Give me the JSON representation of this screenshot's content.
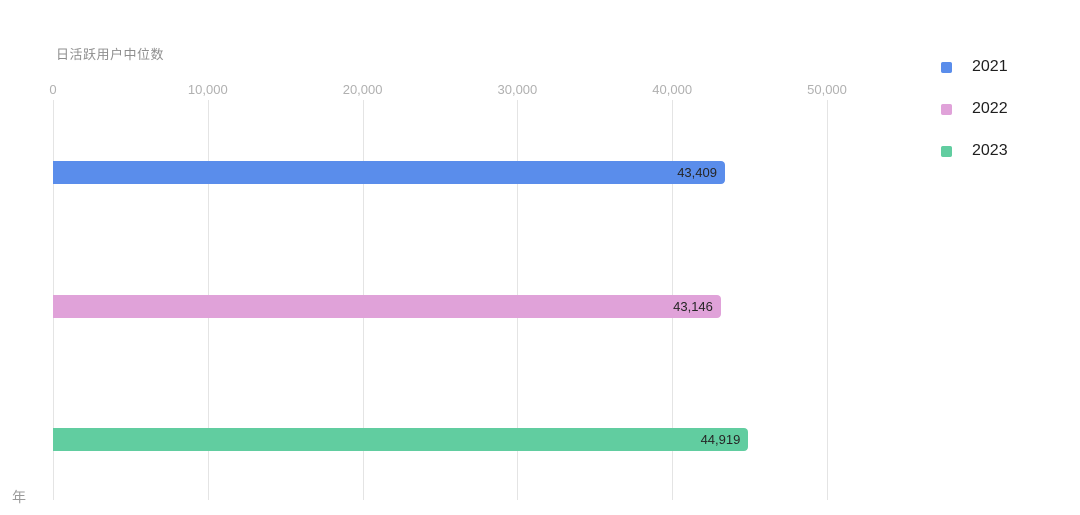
{
  "chart_data": {
    "type": "bar",
    "orientation": "horizontal",
    "title": "日活跃用户中位数",
    "categories": [
      "2021",
      "2022",
      "2023"
    ],
    "series": [
      {
        "name": "2021",
        "value": 43409,
        "label": "43,409",
        "color": "#5A8DEB"
      },
      {
        "name": "2022",
        "value": 43146,
        "label": "43,146",
        "color": "#E0A2D9"
      },
      {
        "name": "2023",
        "value": 44919,
        "label": "44,919",
        "color": "#61CDA0"
      }
    ],
    "xlabel": "",
    "ylabel_clipped": "年",
    "xlim": [
      0,
      50000
    ],
    "x_ticks": [
      {
        "value": 0,
        "label": "0"
      },
      {
        "value": 10000,
        "label": "10,000"
      },
      {
        "value": 20000,
        "label": "20,000"
      },
      {
        "value": 30000,
        "label": "30,000"
      },
      {
        "value": 40000,
        "label": "40,000"
      },
      {
        "value": 50000,
        "label": "50,000"
      }
    ],
    "grid": true,
    "legend_position": "right",
    "colors": {
      "grid": "#e4e4e4",
      "tick_label": "#b0b0b0",
      "title": "#8e8e8e",
      "value_label": "#262626",
      "background": "#ffffff"
    }
  }
}
